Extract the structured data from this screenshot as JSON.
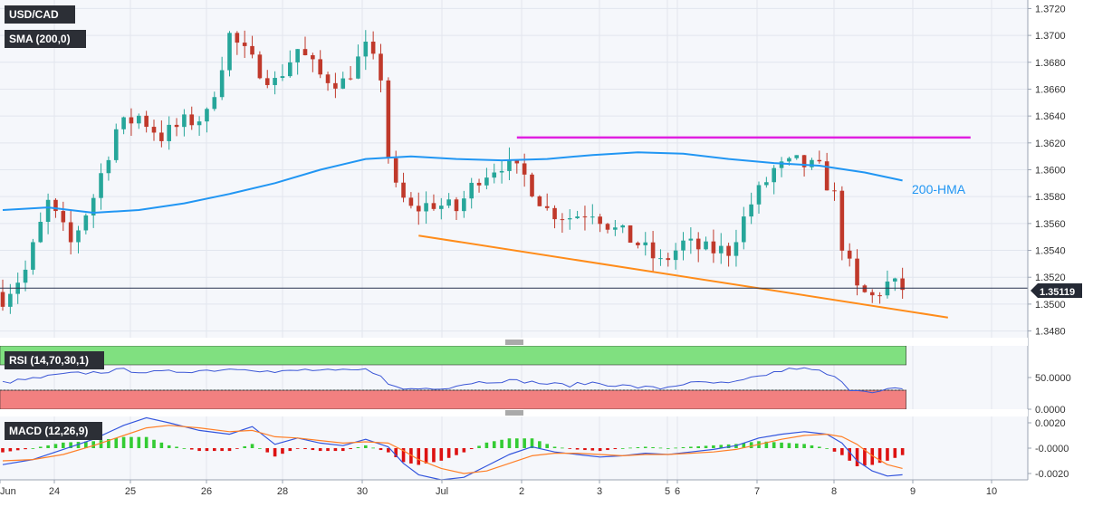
{
  "colors": {
    "background": "#f5f7fb",
    "up": "#26a69a",
    "down": "#c0392b",
    "hma": "#2196f3",
    "resistance": "#e020e0",
    "support": "#ff8c1a",
    "rsi_line": "#3c57d6",
    "rsi_upper_zone": "#80e080",
    "rsi_lower_zone": "#f28080",
    "macd_line": "#3355dd",
    "signal_line": "#ff7f27",
    "hist_pos": "#33cc33",
    "hist_neg": "#dd1111",
    "tag_bg": "#2c2f36",
    "price_tag_bg": "#252a35"
  },
  "labels": {
    "symbol": "USD/CAD",
    "sma": "SMA (200,0)",
    "hma": "200-HMA",
    "rsi": "RSI (14,70,30,1)",
    "macd": "MACD (12,26,9)",
    "last_price": "1.35119"
  },
  "chart_data": [
    {
      "type": "candlestick",
      "title": "USD/CAD",
      "x_tick_labels": [
        "Jun",
        "24",
        "25",
        "26",
        "28",
        "30",
        "Jul",
        "2",
        "3",
        "5",
        "6",
        "7",
        "8",
        "9",
        "10"
      ],
      "y_tick_labels": [
        "1.3720",
        "1.3700",
        "1.3680",
        "1.3660",
        "1.3640",
        "1.3620",
        "1.3600",
        "1.3580",
        "1.3560",
        "1.3540",
        "1.3520",
        "1.3500",
        "1.3480"
      ],
      "ylim": [
        1.3475,
        1.3725
      ],
      "last_price": 1.35119,
      "close_path": [
        [
          0,
          1.3505
        ],
        [
          3,
          1.3525
        ],
        [
          6,
          1.3575
        ],
        [
          9,
          1.3545
        ],
        [
          12,
          1.358
        ],
        [
          15,
          1.363
        ],
        [
          18,
          1.364
        ],
        [
          21,
          1.3625
        ],
        [
          24,
          1.3635
        ],
        [
          27,
          1.364
        ],
        [
          30,
          1.37
        ],
        [
          33,
          1.368
        ],
        [
          36,
          1.3665
        ],
        [
          39,
          1.369
        ],
        [
          42,
          1.367
        ],
        [
          45,
          1.3665
        ],
        [
          48,
          1.369
        ],
        [
          50,
          1.367
        ],
        [
          51,
          1.361
        ],
        [
          52,
          1.3585
        ],
        [
          54,
          1.357
        ],
        [
          57,
          1.3575
        ],
        [
          60,
          1.357
        ],
        [
          63,
          1.3595
        ],
        [
          66,
          1.3605
        ],
        [
          69,
          1.3595
        ],
        [
          72,
          1.357
        ],
        [
          75,
          1.3565
        ],
        [
          78,
          1.357
        ],
        [
          81,
          1.3555
        ],
        [
          84,
          1.3545
        ],
        [
          87,
          1.353
        ],
        [
          90,
          1.3545
        ],
        [
          93,
          1.354
        ],
        [
          96,
          1.354
        ],
        [
          99,
          1.3575
        ],
        [
          102,
          1.36
        ],
        [
          105,
          1.3605
        ],
        [
          108,
          1.36
        ],
        [
          110,
          1.358
        ],
        [
          111,
          1.3545
        ],
        [
          113,
          1.351
        ],
        [
          115,
          1.3505
        ],
        [
          117,
          1.3515
        ],
        [
          119,
          1.35119
        ]
      ],
      "series": [
        {
          "name": "200-HMA",
          "points": [
            [
              0,
              1.357
            ],
            [
              6,
              1.3572
            ],
            [
              12,
              1.3568
            ],
            [
              18,
              1.357
            ],
            [
              24,
              1.3575
            ],
            [
              30,
              1.3582
            ],
            [
              36,
              1.359
            ],
            [
              42,
              1.36
            ],
            [
              48,
              1.3608
            ],
            [
              54,
              1.361
            ],
            [
              60,
              1.3608
            ],
            [
              66,
              1.3607
            ],
            [
              72,
              1.3608
            ],
            [
              78,
              1.3611
            ],
            [
              84,
              1.3613
            ],
            [
              90,
              1.3612
            ],
            [
              96,
              1.3608
            ],
            [
              102,
              1.3605
            ],
            [
              108,
              1.3603
            ],
            [
              114,
              1.3598
            ],
            [
              119,
              1.3592
            ]
          ]
        },
        {
          "name": "resistance",
          "points": [
            [
              68,
              1.3624
            ],
            [
              128,
              1.3624
            ]
          ]
        },
        {
          "name": "support",
          "points": [
            [
              55,
              1.3551
            ],
            [
              125,
              1.349
            ]
          ]
        }
      ]
    },
    {
      "type": "line",
      "title": "RSI (14,70,30,1)",
      "y_tick_labels": [
        "50.0000",
        "0.0000"
      ],
      "ylim": [
        0,
        100
      ],
      "zones": {
        "overbought": 70,
        "oversold": 30
      },
      "rsi_path": [
        [
          0,
          42
        ],
        [
          4,
          48
        ],
        [
          8,
          55
        ],
        [
          12,
          58
        ],
        [
          16,
          62
        ],
        [
          20,
          58
        ],
        [
          24,
          60
        ],
        [
          28,
          62
        ],
        [
          32,
          65
        ],
        [
          36,
          58
        ],
        [
          40,
          62
        ],
        [
          44,
          60
        ],
        [
          48,
          62
        ],
        [
          50,
          55
        ],
        [
          51,
          38
        ],
        [
          53,
          32
        ],
        [
          56,
          33
        ],
        [
          59,
          35
        ],
        [
          62,
          42
        ],
        [
          66,
          45
        ],
        [
          69,
          44
        ],
        [
          72,
          40
        ],
        [
          75,
          38
        ],
        [
          78,
          42
        ],
        [
          81,
          38
        ],
        [
          84,
          35
        ],
        [
          87,
          33
        ],
        [
          90,
          40
        ],
        [
          93,
          42
        ],
        [
          96,
          40
        ],
        [
          99,
          48
        ],
        [
          102,
          58
        ],
        [
          105,
          65
        ],
        [
          108,
          60
        ],
        [
          110,
          50
        ],
        [
          112,
          32
        ],
        [
          114,
          30
        ],
        [
          116,
          28
        ],
        [
          118,
          33
        ],
        [
          119,
          30
        ]
      ]
    },
    {
      "type": "line",
      "title": "MACD (12,26,9)",
      "y_tick_labels": [
        "0.0020",
        "-0.0000",
        "-0.0020"
      ],
      "ylim": [
        -0.0025,
        0.0025
      ],
      "macd_path": [
        [
          0,
          -0.0013
        ],
        [
          4,
          -0.0009
        ],
        [
          8,
          -0.0001
        ],
        [
          12,
          0.0007
        ],
        [
          16,
          0.0018
        ],
        [
          19,
          0.0024
        ],
        [
          22,
          0.002
        ],
        [
          26,
          0.0014
        ],
        [
          30,
          0.0011
        ],
        [
          33,
          0.0017
        ],
        [
          36,
          0.0003
        ],
        [
          39,
          0.0008
        ],
        [
          42,
          0.0004
        ],
        [
          45,
          0.0002
        ],
        [
          48,
          0.0007
        ],
        [
          51,
          0.0001
        ],
        [
          53,
          -0.0012
        ],
        [
          55,
          -0.0021
        ],
        [
          58,
          -0.0025
        ],
        [
          61,
          -0.0023
        ],
        [
          64,
          -0.0014
        ],
        [
          67,
          -0.0005
        ],
        [
          70,
          0.0001
        ],
        [
          73,
          -0.0003
        ],
        [
          76,
          -0.0005
        ],
        [
          79,
          -0.0007
        ],
        [
          82,
          -0.0006
        ],
        [
          85,
          -0.0004
        ],
        [
          88,
          -0.0005
        ],
        [
          91,
          -0.0003
        ],
        [
          94,
          -0.0001
        ],
        [
          97,
          0.0002
        ],
        [
          100,
          0.0008
        ],
        [
          103,
          0.0011
        ],
        [
          106,
          0.0013
        ],
        [
          109,
          0.0011
        ],
        [
          111,
          0.0004
        ],
        [
          113,
          -0.001
        ],
        [
          115,
          -0.0018
        ],
        [
          117,
          -0.0022
        ],
        [
          119,
          -0.0021
        ]
      ],
      "signal_path": [
        [
          0,
          -0.001
        ],
        [
          4,
          -0.0009
        ],
        [
          8,
          -0.0005
        ],
        [
          12,
          0.0002
        ],
        [
          16,
          0.001
        ],
        [
          19,
          0.0016
        ],
        [
          22,
          0.0018
        ],
        [
          26,
          0.0016
        ],
        [
          30,
          0.0013
        ],
        [
          33,
          0.0014
        ],
        [
          36,
          0.0009
        ],
        [
          39,
          0.0008
        ],
        [
          42,
          0.0006
        ],
        [
          45,
          0.0004
        ],
        [
          48,
          0.0005
        ],
        [
          51,
          0.0004
        ],
        [
          53,
          -0.0002
        ],
        [
          55,
          -0.0009
        ],
        [
          58,
          -0.0016
        ],
        [
          61,
          -0.002
        ],
        [
          64,
          -0.0018
        ],
        [
          67,
          -0.0012
        ],
        [
          70,
          -0.0006
        ],
        [
          73,
          -0.0004
        ],
        [
          76,
          -0.0004
        ],
        [
          79,
          -0.0005
        ],
        [
          82,
          -0.0006
        ],
        [
          85,
          -0.0005
        ],
        [
          88,
          -0.0005
        ],
        [
          91,
          -0.0004
        ],
        [
          94,
          -0.0003
        ],
        [
          97,
          -0.0001
        ],
        [
          100,
          0.0003
        ],
        [
          103,
          0.0007
        ],
        [
          106,
          0.001
        ],
        [
          109,
          0.0011
        ],
        [
          111,
          0.0009
        ],
        [
          113,
          0.0003
        ],
        [
          115,
          -0.0006
        ],
        [
          117,
          -0.0013
        ],
        [
          119,
          -0.0016
        ]
      ]
    }
  ]
}
